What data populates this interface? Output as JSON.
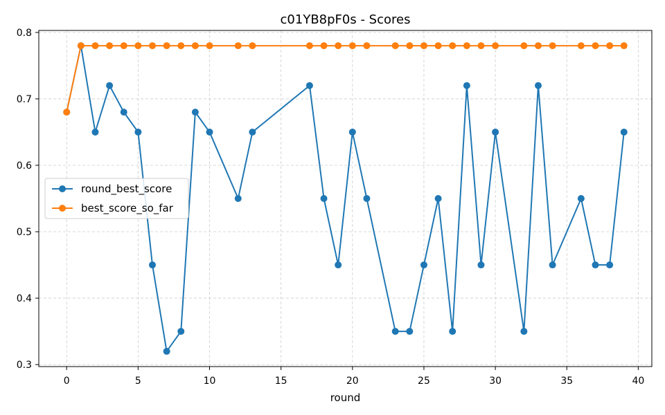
{
  "chart_data": {
    "type": "line",
    "title": "c01YB8pF0s - Scores",
    "xlabel": "round",
    "ylabel": "",
    "xlim": [
      -1.95,
      40.95
    ],
    "ylim": [
      0.297,
      0.803
    ],
    "xticks": [
      0,
      5,
      10,
      15,
      20,
      25,
      30,
      35,
      40
    ],
    "yticks": [
      0.3,
      0.4,
      0.5,
      0.6,
      0.7,
      0.8
    ],
    "grid": true,
    "legend_position": "center-left",
    "series": [
      {
        "name": "round_best_score",
        "color": "#1f77b4",
        "x": [
          0,
          1,
          2,
          3,
          4,
          5,
          6,
          7,
          8,
          9,
          10,
          12,
          13,
          17,
          18,
          19,
          20,
          21,
          23,
          24,
          25,
          26,
          27,
          28,
          29,
          30,
          32,
          33,
          34,
          36,
          37,
          38,
          39
        ],
        "y": [
          0.68,
          0.78,
          0.65,
          0.72,
          0.68,
          0.65,
          0.45,
          0.32,
          0.35,
          0.68,
          0.65,
          0.55,
          0.65,
          0.72,
          0.55,
          0.45,
          0.65,
          0.55,
          0.35,
          0.35,
          0.45,
          0.55,
          0.35,
          0.72,
          0.45,
          0.65,
          0.35,
          0.72,
          0.45,
          0.55,
          0.45,
          0.45,
          0.65
        ]
      },
      {
        "name": "best_score_so_far",
        "color": "#ff7f0e",
        "x": [
          0,
          1,
          2,
          3,
          4,
          5,
          6,
          7,
          8,
          9,
          10,
          12,
          13,
          17,
          18,
          19,
          20,
          21,
          23,
          24,
          25,
          26,
          27,
          28,
          29,
          30,
          32,
          33,
          34,
          36,
          37,
          38,
          39
        ],
        "y": [
          0.68,
          0.78,
          0.78,
          0.78,
          0.78,
          0.78,
          0.78,
          0.78,
          0.78,
          0.78,
          0.78,
          0.78,
          0.78,
          0.78,
          0.78,
          0.78,
          0.78,
          0.78,
          0.78,
          0.78,
          0.78,
          0.78,
          0.78,
          0.78,
          0.78,
          0.78,
          0.78,
          0.78,
          0.78,
          0.78,
          0.78,
          0.78,
          0.78
        ]
      }
    ]
  }
}
